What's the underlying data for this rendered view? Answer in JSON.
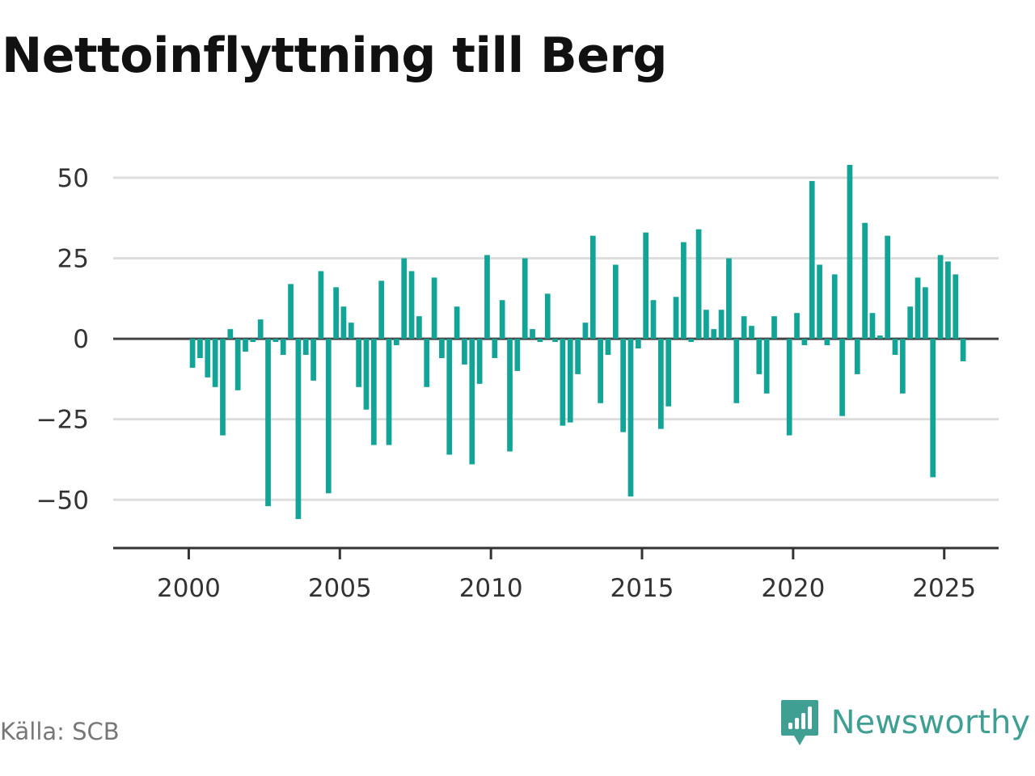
{
  "chart_data": {
    "type": "bar",
    "title": "Nettoinflyttning till Berg",
    "xlabel": "",
    "ylabel": "",
    "ylim": [
      -65,
      55
    ],
    "xlim": [
      1997.5,
      2026.8
    ],
    "yticks": [
      50,
      25,
      0,
      -25,
      -50
    ],
    "ytick_labels": [
      "50",
      "25",
      "0",
      "−25",
      "−50"
    ],
    "xticks": [
      2000,
      2005,
      2010,
      2015,
      2020,
      2025
    ],
    "xtick_labels": [
      "2000",
      "2005",
      "2010",
      "2015",
      "2020",
      "2025"
    ],
    "grid": "horizontal",
    "bar_color": "#12a597",
    "period": "quarterly",
    "start_year": 2000,
    "values": [
      -9,
      -6,
      -12,
      -15,
      -30,
      3,
      -16,
      -4,
      -1,
      6,
      -52,
      -1,
      -5,
      17,
      -56,
      -5,
      -13,
      21,
      -48,
      16,
      10,
      5,
      -15,
      -22,
      -33,
      18,
      -33,
      -2,
      25,
      21,
      7,
      -15,
      19,
      -6,
      -36,
      10,
      -8,
      -39,
      -14,
      26,
      -6,
      12,
      -35,
      -10,
      25,
      3,
      -1,
      14,
      -1,
      -27,
      -26,
      -11,
      5,
      32,
      -20,
      -5,
      23,
      -29,
      -49,
      -3,
      33,
      12,
      -28,
      -21,
      13,
      30,
      -1,
      34,
      9,
      3,
      9,
      25,
      -20,
      7,
      4,
      -11,
      -17,
      7,
      0,
      -30,
      8,
      -2,
      49,
      23,
      -2,
      20,
      -24,
      54,
      -11,
      36,
      8,
      1,
      32,
      -5,
      -17,
      10,
      19,
      16,
      -43,
      26,
      24,
      20,
      -7
    ]
  },
  "footer": {
    "source": "Källa: SCB",
    "brand": "Newsworthy"
  },
  "colors": {
    "bars": "#12a597",
    "brand": "#3f9f93"
  }
}
